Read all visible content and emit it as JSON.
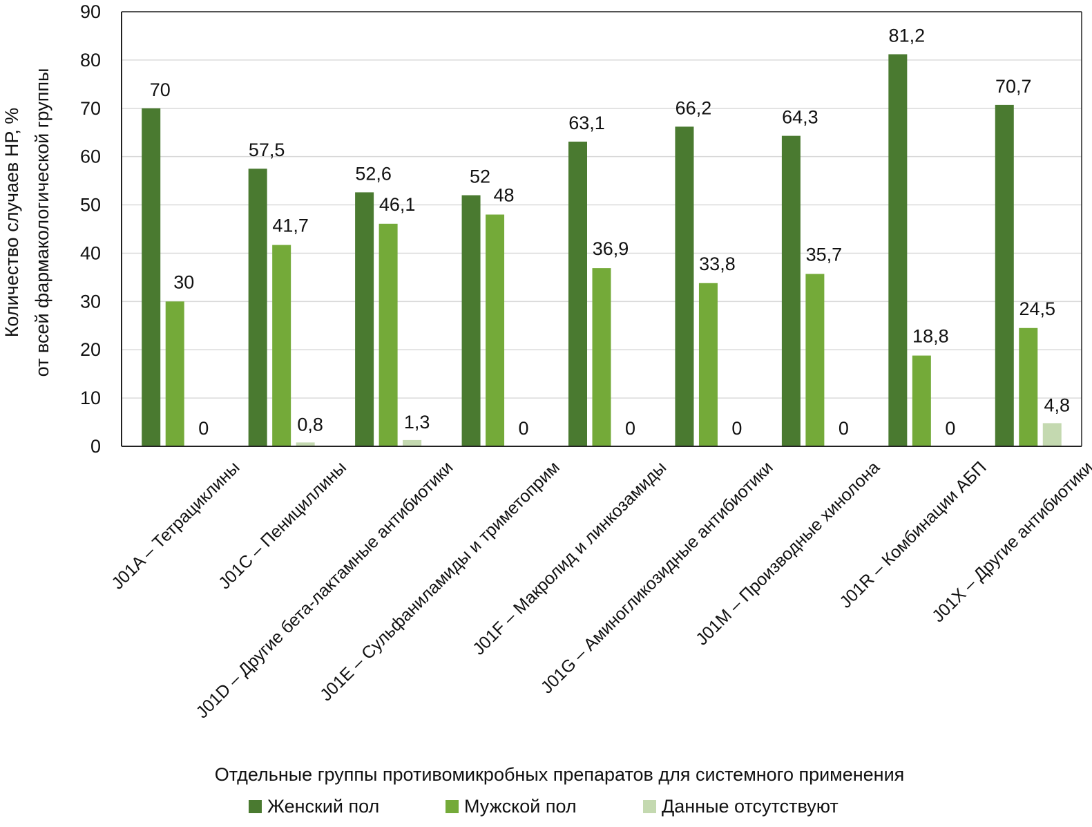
{
  "chart_data": {
    "type": "bar",
    "title": "",
    "xlabel": "Отдельные группы противомикробных препаратов для системного применения",
    "ylabel_line1": "Количество случаев НР, %",
    "ylabel_line2": "от всей фармакологической группы",
    "ylim": [
      0,
      90
    ],
    "yticks": [
      0,
      10,
      20,
      30,
      40,
      50,
      60,
      70,
      80,
      90
    ],
    "grid": true,
    "legend_position": "bottom",
    "categories": [
      "J01A – Тетрациклины",
      "J01C – Пенициллины",
      "J01D – Другие бета-лактамные антибиотики",
      "J01E – Сульфаниламиды и триметоприм",
      "J01F – Макролид и линкозамиды",
      "J01G – Аминогликозидные антибиотики",
      "J01M – Производные хинолона",
      "J01R – Комбинации АБП",
      "J01X – Другие антибиотики"
    ],
    "series": [
      {
        "name": "Женский пол",
        "color": "#4a7a30",
        "values": [
          70,
          57.5,
          52.6,
          52,
          63.1,
          66.2,
          64.3,
          81.2,
          70.7
        ],
        "labels": [
          "70",
          "57,5",
          "52,6",
          "52",
          "63,1",
          "66,2",
          "64,3",
          "81,2",
          "70,7"
        ]
      },
      {
        "name": "Мужской пол",
        "color": "#74aa39",
        "values": [
          30,
          41.7,
          46.1,
          48,
          36.9,
          33.8,
          35.7,
          18.8,
          24.5
        ],
        "labels": [
          "30",
          "41,7",
          "46,1",
          "48",
          "36,9",
          "33,8",
          "35,7",
          "18,8",
          "24,5"
        ]
      },
      {
        "name": "Данные отсутствуют",
        "color": "#c4d9b0",
        "values": [
          0,
          0.8,
          1.3,
          0,
          0,
          0,
          0,
          0,
          4.8
        ],
        "labels": [
          "0",
          "0,8",
          "1,3",
          "0",
          "0",
          "0",
          "0",
          "0",
          "4,8"
        ]
      }
    ]
  }
}
